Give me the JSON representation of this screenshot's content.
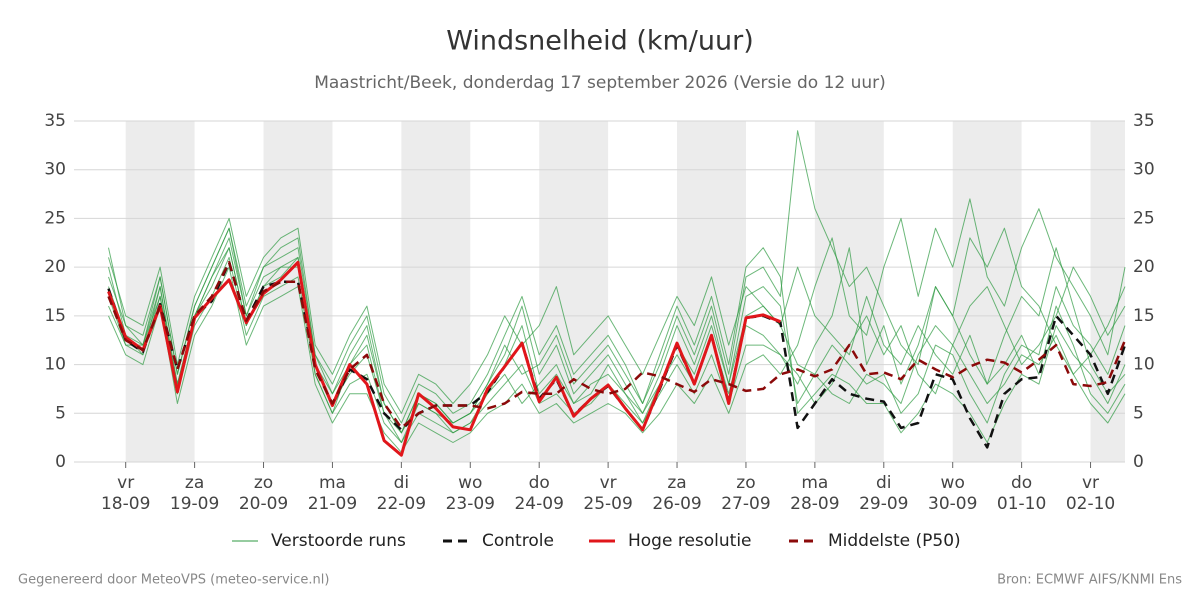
{
  "chart_data": {
    "type": "line",
    "title": "Windsnelheid (km/uur)",
    "subtitle": "Maastricht/Beek, donderdag 17 september 2026 (Versie do 12 uur)",
    "footer_left": "Gegenereerd door MeteoVPS (meteo-service.nl)",
    "footer_right": "Bron: ECMWF AIFS/KNMI Ens",
    "x": [
      -0.25,
      0,
      0.25,
      0.5,
      0.75,
      1,
      1.25,
      1.5,
      1.75,
      2,
      2.25,
      2.5,
      2.75,
      3,
      3.25,
      3.5,
      3.75,
      4,
      4.25,
      4.5,
      4.75,
      5,
      5.25,
      5.5,
      5.75,
      6,
      6.25,
      6.5,
      6.75,
      7,
      7.25,
      7.5,
      7.75,
      8,
      8.25,
      8.5,
      8.75,
      9,
      9.25,
      9.5,
      9.75,
      10,
      10.25,
      10.5,
      10.75,
      11,
      11.25,
      11.5,
      11.75,
      12,
      12.25,
      12.5,
      12.75,
      13,
      13.25,
      13.5,
      13.75,
      14,
      14.25,
      14.5
    ],
    "xlim": [
      -0.75,
      14.5
    ],
    "xticks": [
      {
        "value": 0,
        "day": "vr",
        "label": "18-09"
      },
      {
        "value": 1,
        "day": "za",
        "label": "19-09"
      },
      {
        "value": 2,
        "day": "zo",
        "label": "20-09"
      },
      {
        "value": 3,
        "day": "ma",
        "label": "21-09"
      },
      {
        "value": 4,
        "day": "di",
        "label": "22-09"
      },
      {
        "value": 5,
        "day": "wo",
        "label": "23-09"
      },
      {
        "value": 6,
        "day": "do",
        "label": "24-09"
      },
      {
        "value": 7,
        "day": "vr",
        "label": "25-09"
      },
      {
        "value": 8,
        "day": "za",
        "label": "26-09"
      },
      {
        "value": 9,
        "day": "zo",
        "label": "27-09"
      },
      {
        "value": 10,
        "day": "ma",
        "label": "28-09"
      },
      {
        "value": 11,
        "day": "di",
        "label": "29-09"
      },
      {
        "value": 12,
        "day": "wo",
        "label": "30-09"
      },
      {
        "value": 13,
        "day": "do",
        "label": "01-10"
      },
      {
        "value": 14,
        "day": "vr",
        "label": "02-10"
      }
    ],
    "ylim": [
      0,
      35
    ],
    "yticks": [
      0,
      5,
      10,
      15,
      20,
      25,
      30,
      35
    ],
    "grid": true,
    "series": [
      {
        "name": "Verstoorde runs",
        "color": "#2e9a41",
        "runs": [
          [
            20,
            13,
            12,
            18,
            8,
            15,
            19,
            23,
            15,
            19,
            20,
            21,
            10,
            7,
            11,
            14,
            6,
            3,
            7,
            6,
            4,
            5,
            8,
            11,
            16,
            9,
            12,
            7,
            9,
            11,
            8,
            5,
            9,
            14,
            10,
            15,
            8,
            17,
            18,
            16,
            6,
            9,
            12,
            10,
            8,
            9,
            5,
            7,
            12,
            11,
            7,
            4,
            9,
            12,
            11,
            18,
            14,
            12,
            9,
            14
          ],
          [
            16,
            12,
            11,
            17,
            7,
            14,
            17,
            21,
            13,
            17,
            18,
            19,
            9,
            5,
            8,
            9,
            4,
            2,
            5,
            4,
            3,
            4,
            6,
            8,
            10,
            6,
            7,
            5,
            6,
            8,
            6,
            4,
            7,
            10,
            7,
            11,
            6,
            12,
            12,
            11,
            8,
            12,
            15,
            22,
            10,
            14,
            8,
            12,
            18,
            15,
            11,
            8,
            13,
            17,
            15,
            22,
            16,
            10,
            7,
            9
          ],
          [
            19,
            14,
            13,
            19,
            9,
            16,
            20,
            24,
            16,
            20,
            22,
            23,
            11,
            8,
            12,
            15,
            7,
            4,
            8,
            7,
            5,
            6,
            9,
            13,
            17,
            11,
            14,
            9,
            11,
            13,
            10,
            6,
            11,
            16,
            12,
            17,
            10,
            20,
            22,
            19,
            5,
            7,
            9,
            8,
            6,
            6,
            3,
            5,
            8,
            7,
            5,
            2,
            6,
            9,
            8,
            14,
            11,
            9,
            6,
            10
          ],
          [
            15,
            11,
            10,
            16,
            6,
            13,
            16,
            20,
            12,
            16,
            17,
            18,
            8,
            4,
            7,
            7,
            3,
            1,
            4,
            3,
            2,
            3,
            5,
            6,
            8,
            5,
            6,
            4,
            5,
            6,
            5,
            3,
            5,
            8,
            6,
            9,
            5,
            10,
            11,
            9,
            12,
            18,
            23,
            15,
            13,
            20,
            25,
            17,
            24,
            20,
            27,
            19,
            16,
            22,
            26,
            21,
            18,
            15,
            11,
            20
          ],
          [
            21,
            15,
            14,
            20,
            10,
            17,
            21,
            25,
            17,
            21,
            23,
            24,
            12,
            9,
            13,
            16,
            8,
            5,
            9,
            8,
            6,
            8,
            11,
            15,
            12,
            14,
            18,
            11,
            13,
            15,
            12,
            9,
            13,
            17,
            14,
            19,
            12,
            18,
            16,
            14,
            20,
            15,
            13,
            11,
            17,
            12,
            10,
            14,
            11,
            9,
            13,
            8,
            10,
            13,
            9,
            16,
            12,
            7,
            5,
            8
          ],
          [
            17,
            12,
            12,
            17,
            8,
            15,
            18,
            22,
            14,
            18,
            20,
            20,
            10,
            6,
            9,
            11,
            5,
            2,
            6,
            5,
            4,
            5,
            7,
            9,
            6,
            8,
            10,
            6,
            8,
            9,
            7,
            5,
            8,
            11,
            8,
            13,
            7,
            14,
            13,
            11,
            9,
            6,
            8,
            12,
            15,
            11,
            14,
            9,
            7,
            12,
            16,
            18,
            14,
            10,
            12,
            15,
            20,
            17,
            13,
            16
          ],
          [
            18,
            13,
            11,
            18,
            7,
            15,
            19,
            22,
            14,
            18,
            19,
            21,
            9,
            5,
            10,
            12,
            5,
            3,
            6,
            5,
            3,
            4,
            7,
            10,
            14,
            7,
            9,
            6,
            7,
            10,
            7,
            4,
            8,
            12,
            9,
            14,
            8,
            15,
            16,
            14,
            10,
            9,
            7,
            6,
            9,
            8,
            6,
            11,
            14,
            12,
            9,
            6,
            8,
            11,
            10,
            13,
            9,
            6,
            4,
            7
          ],
          [
            22,
            14,
            12,
            19,
            9,
            16,
            20,
            24,
            15,
            20,
            21,
            22,
            11,
            7,
            10,
            13,
            6,
            3,
            7,
            6,
            4,
            5,
            8,
            12,
            9,
            10,
            13,
            8,
            10,
            12,
            9,
            6,
            10,
            15,
            11,
            16,
            9,
            19,
            20,
            17,
            34,
            26,
            22,
            18,
            20,
            16,
            12,
            10,
            18,
            15,
            23,
            20,
            24,
            18,
            16,
            12,
            9,
            11,
            14,
            18
          ]
        ]
      },
      {
        "name": "Controle",
        "color": "#111111",
        "dashed": true,
        "values": [
          17.8,
          12.5,
          11.3,
          16.2,
          9.5,
          15,
          16.5,
          20.5,
          14.5,
          18,
          18.5,
          18.5,
          10,
          5.8,
          9.5,
          8.5,
          5,
          3.3,
          5,
          5.8,
          5.8,
          5.8,
          7.2,
          9.8,
          12.2,
          6.5,
          8.5,
          4.8,
          6.5,
          7.8,
          5.5,
          3.3,
          7.5,
          12,
          8,
          13,
          6.2,
          14.8,
          15,
          14.3,
          3.5,
          6,
          8.5,
          7,
          6.5,
          6.2,
          3.5,
          4,
          9,
          8.5,
          4.5,
          1.5,
          7,
          8.5,
          8.7,
          15,
          13,
          11,
          7,
          12
        ]
      },
      {
        "name": "Hoge resolutie",
        "color": "#e0161b",
        "values": [
          17.5,
          12.8,
          11.5,
          16,
          7.2,
          14.8,
          16.8,
          18.7,
          14.3,
          17.3,
          18.7,
          20.5,
          10,
          5.8,
          10,
          8,
          2.2,
          0.7,
          7,
          5.5,
          3.6,
          3.3,
          7.5,
          9.8,
          12.2,
          6.2,
          8.7,
          4.7,
          6.5,
          7.9,
          5.5,
          3.3,
          7.7,
          12.2,
          8,
          13,
          6,
          14.8,
          15.1,
          14.4,
          null,
          null,
          null,
          null,
          null,
          null,
          null,
          null,
          null,
          null,
          null,
          null,
          null,
          null,
          null,
          null,
          null,
          null,
          null,
          null
        ]
      },
      {
        "name": "Middelste (P50)",
        "color": "#8b0a0a",
        "dashed": true,
        "values": [
          17,
          12.5,
          11.5,
          16,
          9.5,
          15,
          17,
          20.5,
          14.5,
          17.5,
          18.5,
          18.5,
          9.5,
          6,
          9.5,
          11,
          6,
          3.5,
          5,
          5.8,
          5.8,
          5.8,
          5.5,
          6,
          7.2,
          7,
          7,
          8.5,
          7.5,
          7,
          7.5,
          9.2,
          8.8,
          8,
          7.2,
          8.5,
          8,
          7.3,
          7.5,
          9,
          9.5,
          8.8,
          9.5,
          12,
          9,
          9.2,
          8.5,
          10.5,
          9.5,
          8.7,
          9.8,
          10.5,
          10.2,
          9.2,
          10.5,
          12,
          8,
          7.8,
          8.2,
          12.5
        ]
      }
    ]
  }
}
